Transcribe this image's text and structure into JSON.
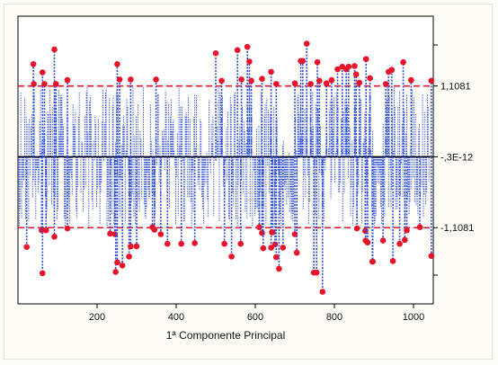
{
  "chart_data": {
    "type": "scatter",
    "title": "",
    "xlabel": "1ª Componente Principal",
    "ylabel": "",
    "xlim": [
      0,
      1050
    ],
    "ylim": [
      -2.3,
      2.2
    ],
    "x_ticks": [
      200,
      400,
      600,
      800,
      1000
    ],
    "x_tick_labels": [
      "200",
      "400",
      "600",
      "800",
      "1000"
    ],
    "grid": false,
    "colors": {
      "stems": "#2f4fd6",
      "outliers": "#e8122a",
      "limit_lines": "#e8122a",
      "center_line": "#000000"
    },
    "reference_lines": [
      {
        "name": "upper_limit",
        "y": 1.1081,
        "label": "1,1081",
        "style": "dashed-red"
      },
      {
        "name": "center",
        "y": 0,
        "label": "-,3E-12",
        "style": "solid-black"
      },
      {
        "name": "lower_limit",
        "y": -1.1081,
        "label": "-1,1081",
        "style": "dashed-red"
      }
    ],
    "outliers": [
      {
        "x": 39,
        "y": 1.45
      },
      {
        "x": 40,
        "y": 1.14
      },
      {
        "x": 62,
        "y": 1.32
      },
      {
        "x": 67,
        "y": 1.14
      },
      {
        "x": 92,
        "y": 1.68
      },
      {
        "x": 96,
        "y": 1.14
      },
      {
        "x": 125,
        "y": 1.2
      },
      {
        "x": 251,
        "y": 1.45
      },
      {
        "x": 257,
        "y": 1.21
      },
      {
        "x": 285,
        "y": 1.21
      },
      {
        "x": 349,
        "y": 1.21
      },
      {
        "x": 500,
        "y": 1.62
      },
      {
        "x": 515,
        "y": 1.19
      },
      {
        "x": 555,
        "y": 1.67
      },
      {
        "x": 565,
        "y": 1.21
      },
      {
        "x": 580,
        "y": 1.72
      },
      {
        "x": 585,
        "y": 1.49
      },
      {
        "x": 590,
        "y": 1.19
      },
      {
        "x": 617,
        "y": 1.22
      },
      {
        "x": 640,
        "y": 1.33
      },
      {
        "x": 653,
        "y": 1.14
      },
      {
        "x": 700,
        "y": 1.15
      },
      {
        "x": 715,
        "y": 1.5
      },
      {
        "x": 720,
        "y": 1.5
      },
      {
        "x": 730,
        "y": 1.77
      },
      {
        "x": 740,
        "y": 1.14
      },
      {
        "x": 757,
        "y": 1.48
      },
      {
        "x": 762,
        "y": 1.19
      },
      {
        "x": 780,
        "y": 1.15
      },
      {
        "x": 793,
        "y": 1.2
      },
      {
        "x": 808,
        "y": 1.37
      },
      {
        "x": 820,
        "y": 1.41
      },
      {
        "x": 830,
        "y": 1.37
      },
      {
        "x": 836,
        "y": 1.41
      },
      {
        "x": 851,
        "y": 1.42
      },
      {
        "x": 855,
        "y": 1.29
      },
      {
        "x": 863,
        "y": 1.16
      },
      {
        "x": 880,
        "y": 1.53
      },
      {
        "x": 890,
        "y": 1.23
      },
      {
        "x": 930,
        "y": 1.14
      },
      {
        "x": 937,
        "y": 1.33
      },
      {
        "x": 945,
        "y": 1.36
      },
      {
        "x": 974,
        "y": 1.48
      },
      {
        "x": 994,
        "y": 1.2
      },
      {
        "x": 1045,
        "y": 1.19
      },
      {
        "x": 22,
        "y": -1.41
      },
      {
        "x": 60,
        "y": -1.15
      },
      {
        "x": 62,
        "y": -1.82
      },
      {
        "x": 71,
        "y": -1.15
      },
      {
        "x": 92,
        "y": -1.25
      },
      {
        "x": 125,
        "y": -1.12
      },
      {
        "x": 233,
        "y": -1.2
      },
      {
        "x": 245,
        "y": -1.21
      },
      {
        "x": 247,
        "y": -1.8
      },
      {
        "x": 251,
        "y": -1.65
      },
      {
        "x": 264,
        "y": -1.7
      },
      {
        "x": 281,
        "y": -1.56
      },
      {
        "x": 285,
        "y": -1.4
      },
      {
        "x": 300,
        "y": -1.4
      },
      {
        "x": 340,
        "y": -1.1
      },
      {
        "x": 345,
        "y": -1.14
      },
      {
        "x": 361,
        "y": -1.21
      },
      {
        "x": 378,
        "y": -1.36
      },
      {
        "x": 413,
        "y": -1.36
      },
      {
        "x": 447,
        "y": -1.35
      },
      {
        "x": 522,
        "y": -1.36
      },
      {
        "x": 540,
        "y": -1.56
      },
      {
        "x": 563,
        "y": -1.36
      },
      {
        "x": 610,
        "y": -1.1
      },
      {
        "x": 617,
        "y": -1.19
      },
      {
        "x": 620,
        "y": -1.43
      },
      {
        "x": 640,
        "y": -1.42
      },
      {
        "x": 642,
        "y": -1.18
      },
      {
        "x": 644,
        "y": -1.18
      },
      {
        "x": 650,
        "y": -1.37
      },
      {
        "x": 653,
        "y": -1.57
      },
      {
        "x": 660,
        "y": -1.75
      },
      {
        "x": 670,
        "y": -1.42
      },
      {
        "x": 700,
        "y": -1.21
      },
      {
        "x": 705,
        "y": -1.5
      },
      {
        "x": 748,
        "y": -1.81
      },
      {
        "x": 755,
        "y": -1.81
      },
      {
        "x": 770,
        "y": -2.11
      },
      {
        "x": 857,
        "y": -1.12
      },
      {
        "x": 878,
        "y": -1.16
      },
      {
        "x": 879,
        "y": -1.31
      },
      {
        "x": 884,
        "y": -1.34
      },
      {
        "x": 896,
        "y": -1.64
      },
      {
        "x": 897,
        "y": -1.64
      },
      {
        "x": 923,
        "y": -1.31
      },
      {
        "x": 948,
        "y": -1.63
      },
      {
        "x": 965,
        "y": -1.36
      },
      {
        "x": 978,
        "y": -1.3
      },
      {
        "x": 983,
        "y": -1.15
      },
      {
        "x": 1016,
        "y": -1.1
      },
      {
        "x": 1045,
        "y": -1.55
      }
    ]
  }
}
